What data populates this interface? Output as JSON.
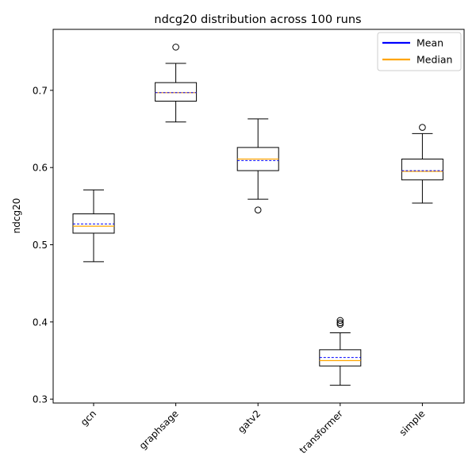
{
  "chart_data": {
    "type": "boxplot",
    "title": "ndcg20 distribution across 100 runs",
    "xlabel": "",
    "ylabel": "ndcg20",
    "ylim": [
      0.295,
      0.779
    ],
    "yticks": [
      0.3,
      0.4,
      0.5,
      0.6,
      0.7
    ],
    "ytick_labels": [
      "0.3",
      "0.4",
      "0.5",
      "0.6",
      "0.7"
    ],
    "categories": [
      "gcn",
      "graphsage",
      "gatv2",
      "transformer",
      "simple"
    ],
    "boxes": [
      {
        "name": "gcn",
        "whisker_low": 0.478,
        "q1": 0.515,
        "median": 0.524,
        "mean": 0.527,
        "q3": 0.54,
        "whisker_high": 0.571,
        "outliers": []
      },
      {
        "name": "graphsage",
        "whisker_low": 0.659,
        "q1": 0.686,
        "median": 0.697,
        "mean": 0.697,
        "q3": 0.71,
        "whisker_high": 0.735,
        "outliers": [
          0.756
        ]
      },
      {
        "name": "gatv2",
        "whisker_low": 0.559,
        "q1": 0.596,
        "median": 0.611,
        "mean": 0.609,
        "q3": 0.626,
        "whisker_high": 0.663,
        "outliers": [
          0.545
        ]
      },
      {
        "name": "transformer",
        "whisker_low": 0.318,
        "q1": 0.343,
        "median": 0.35,
        "mean": 0.354,
        "q3": 0.364,
        "whisker_high": 0.386,
        "outliers": [
          0.397,
          0.399,
          0.402
        ]
      },
      {
        "name": "simple",
        "whisker_low": 0.554,
        "q1": 0.584,
        "median": 0.595,
        "mean": 0.596,
        "q3": 0.611,
        "whisker_high": 0.644,
        "outliers": [
          0.652
        ]
      }
    ],
    "legend": {
      "placement": "top-right",
      "entries": [
        {
          "label": "Mean",
          "color": "#0000ff"
        },
        {
          "label": "Median",
          "color": "#ffa500"
        }
      ]
    },
    "colors": {
      "mean": "#0000ff",
      "median": "#ffa500",
      "box": "#000000"
    }
  }
}
